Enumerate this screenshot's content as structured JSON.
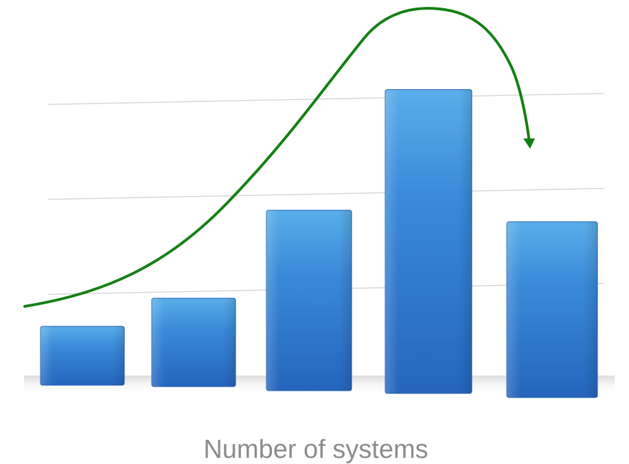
{
  "chart_data": {
    "type": "bar",
    "categories": [
      "",
      "",
      "",
      "",
      ""
    ],
    "values": [
      0.62,
      0.93,
      1.9,
      3.2,
      1.85
    ],
    "ylim": [
      0,
      3.45
    ],
    "grid": true,
    "xlabel": "Number of systems",
    "ylabel": "",
    "title": "",
    "annotations": [
      {
        "type": "trend-arrow",
        "shape": "rise-then-fall",
        "color": "#138013"
      }
    ],
    "colors": {
      "bar": "#2f78cf",
      "bar_highlight": "#5aaee9",
      "bar_shadow": "#1f5fae",
      "gridline": "#d6d6d6",
      "baseline": "#c8c8c8",
      "xlabel": "#8c8c8c"
    }
  }
}
